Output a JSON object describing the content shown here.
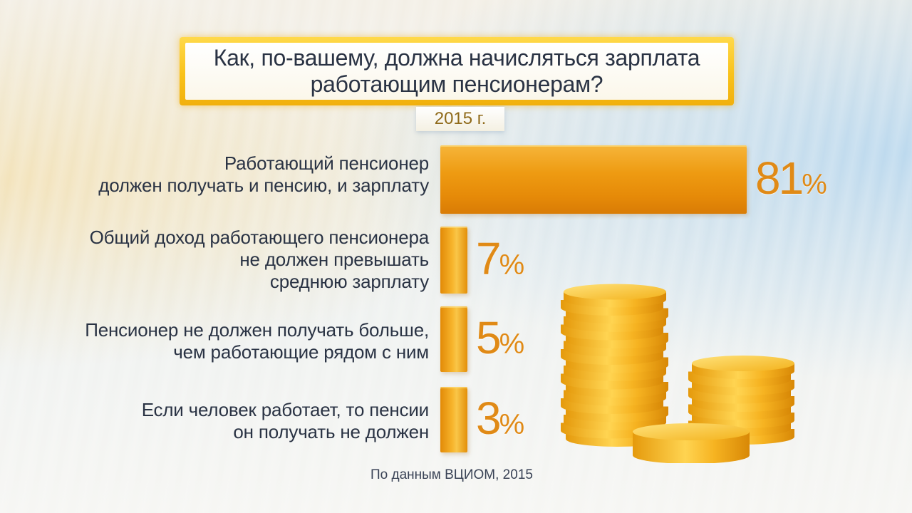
{
  "title": "Как, по-вашему, должна начисляться зарплата работающим пенсионерам?",
  "year": "2015 г.",
  "source": "По данным ВЦИОМ, 2015",
  "chart_data": {
    "type": "bar",
    "orientation": "horizontal",
    "title": "Как, по-вашему, должна начисляться зарплата работающим пенсионерам?",
    "subtitle": "2015 г.",
    "categories": [
      "Работающий пенсионер должен получать и пенсию, и зарплату",
      "Общий доход работающего пенсионера не должен превышать среднюю зарплату",
      "Пенсионер не должен получать больше, чем работающие рядом с ним",
      "Если человек работает, то пенсии он получать не должен"
    ],
    "values": [
      81,
      7,
      5,
      3
    ],
    "value_labels": [
      "81",
      "7",
      "5",
      "3"
    ],
    "unit": "%",
    "bar_color": "#ee9b12",
    "label_color": "#e08a16",
    "grid": false,
    "legend": "none"
  },
  "decoration": {
    "coins_icon": "gold-coin-stacks",
    "coin_color": "#f2b21a"
  }
}
